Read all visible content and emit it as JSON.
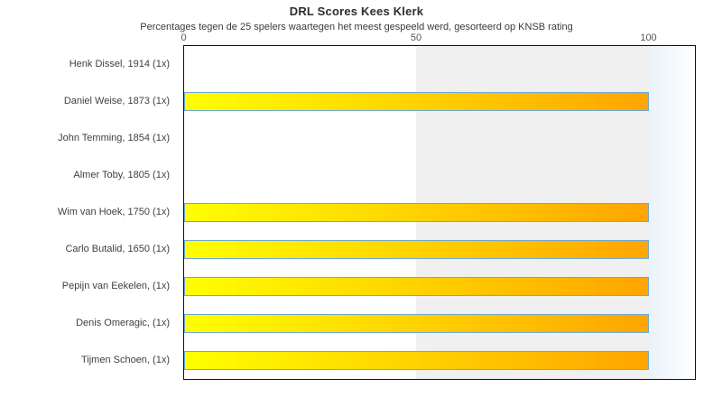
{
  "chart_data": {
    "type": "bar",
    "orientation": "horizontal",
    "title": "DRL Scores Kees Klerk",
    "subtitle": "Percentages tegen de 25 spelers waartegen het meest gespeeld werd, gesorteerd op KNSB rating",
    "categories": [
      "Henk Dissel, 1914 (1x)",
      "Daniel Weise, 1873 (1x)",
      "John Temming, 1854 (1x)",
      "Almer Toby, 1805 (1x)",
      "Wim van Hoek, 1750 (1x)",
      "Carlo Butalid, 1650 (1x)",
      "Pepijn van Eekelen,  (1x)",
      "Denis Omeragic,  (1x)",
      "Tijmen Schoen,  (1x)"
    ],
    "values": [
      0,
      100,
      0,
      0,
      100,
      100,
      100,
      100,
      100
    ],
    "xlabel": "",
    "ylabel": "",
    "xlim": [
      0,
      110
    ],
    "xticks": [
      "0",
      "50",
      "100"
    ],
    "xtick_values": [
      0,
      50,
      100
    ],
    "grid": false,
    "legend": null,
    "shaded_region": {
      "from": 50,
      "to": 100
    },
    "colors": {
      "bar_gradient_start": "#ffff00",
      "bar_gradient_end": "#ffa500",
      "bar_border": "#6fa8d6",
      "band_50_100": "#f0f0f0",
      "band_beyond_100_start": "#eaf2f9",
      "band_beyond_100_end": "#ffffff",
      "plot_border": "#111111",
      "title_color": "#2e2e2e",
      "subtitle_color": "#3a3a3a",
      "label_color": "#3f3f3f",
      "tick_color": "#555555"
    }
  }
}
